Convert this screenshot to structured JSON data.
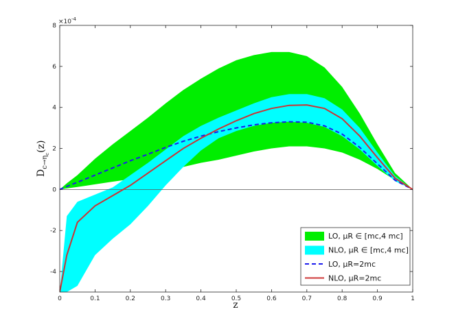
{
  "chart_data": {
    "type": "area",
    "xlabel": "z",
    "ylabel": "D",
    "ylabel_sub": "c→η",
    "ylabel_subsub": "c",
    "ylabel_tail": "(z)",
    "exponent_label": "×10",
    "exponent_power": "-4",
    "xlim": [
      0,
      1
    ],
    "ylim": [
      -5,
      8
    ],
    "x_ticks": [
      "0",
      "0.1",
      "0.2",
      "0.3",
      "0.4",
      "0.5",
      "0.6",
      "0.7",
      "0.8",
      "0.9",
      "1"
    ],
    "y_ticks": [
      "-4",
      "-2",
      "0",
      "2",
      "4",
      "6",
      "8"
    ],
    "grid": false,
    "legend_position": "bottom-right",
    "zero_line": true,
    "x": [
      0,
      0.02,
      0.05,
      0.1,
      0.15,
      0.2,
      0.25,
      0.3,
      0.35,
      0.4,
      0.45,
      0.5,
      0.55,
      0.6,
      0.65,
      0.7,
      0.75,
      0.8,
      0.85,
      0.9,
      0.95,
      1.0
    ],
    "series": [
      {
        "name": "LO, μR ∈ [mc,4 mc]",
        "type": "band",
        "color": "#00ee00",
        "lower": [
          0,
          0.05,
          0.12,
          0.25,
          0.38,
          0.5,
          0.65,
          0.85,
          1.1,
          1.3,
          1.45,
          1.65,
          1.85,
          2.0,
          2.1,
          2.1,
          2.0,
          1.8,
          1.45,
          1.0,
          0.45,
          0
        ],
        "upper": [
          0,
          0.3,
          0.7,
          1.5,
          2.2,
          2.85,
          3.5,
          4.2,
          4.85,
          5.4,
          5.9,
          6.3,
          6.55,
          6.7,
          6.7,
          6.5,
          5.95,
          5.0,
          3.7,
          2.2,
          0.8,
          0
        ]
      },
      {
        "name": "NLO, μR ∈ [mc,4 mc]",
        "type": "band",
        "color": "#00ffff",
        "lower": [
          -5,
          -5,
          -4.7,
          -3.2,
          -2.4,
          -1.7,
          -0.8,
          0.2,
          1.1,
          1.9,
          2.5,
          2.85,
          3.1,
          3.25,
          3.3,
          3.25,
          3.05,
          2.6,
          1.95,
          1.15,
          0.4,
          0
        ],
        "upper": [
          -5,
          -1.3,
          -0.6,
          -0.25,
          0.1,
          0.7,
          1.3,
          1.95,
          2.6,
          3.1,
          3.5,
          3.85,
          4.2,
          4.5,
          4.65,
          4.65,
          4.45,
          3.9,
          3.0,
          1.8,
          0.65,
          0
        ]
      },
      {
        "name": "LO, μR=2mc",
        "type": "line",
        "dash": true,
        "color": "#1a1aee",
        "values": [
          0,
          0.15,
          0.35,
          0.7,
          1.05,
          1.4,
          1.72,
          2.05,
          2.35,
          2.6,
          2.82,
          3.0,
          3.15,
          3.25,
          3.3,
          3.28,
          3.1,
          2.7,
          2.05,
          1.25,
          0.45,
          0
        ]
      },
      {
        "name": "NLO, μR=2mc",
        "type": "line",
        "dash": false,
        "color": "#cc3333",
        "values": [
          -5,
          -3.2,
          -1.6,
          -0.8,
          -0.3,
          0.2,
          0.8,
          1.4,
          2.0,
          2.5,
          2.95,
          3.35,
          3.7,
          3.95,
          4.1,
          4.12,
          3.95,
          3.45,
          2.6,
          1.55,
          0.55,
          0
        ]
      }
    ]
  }
}
